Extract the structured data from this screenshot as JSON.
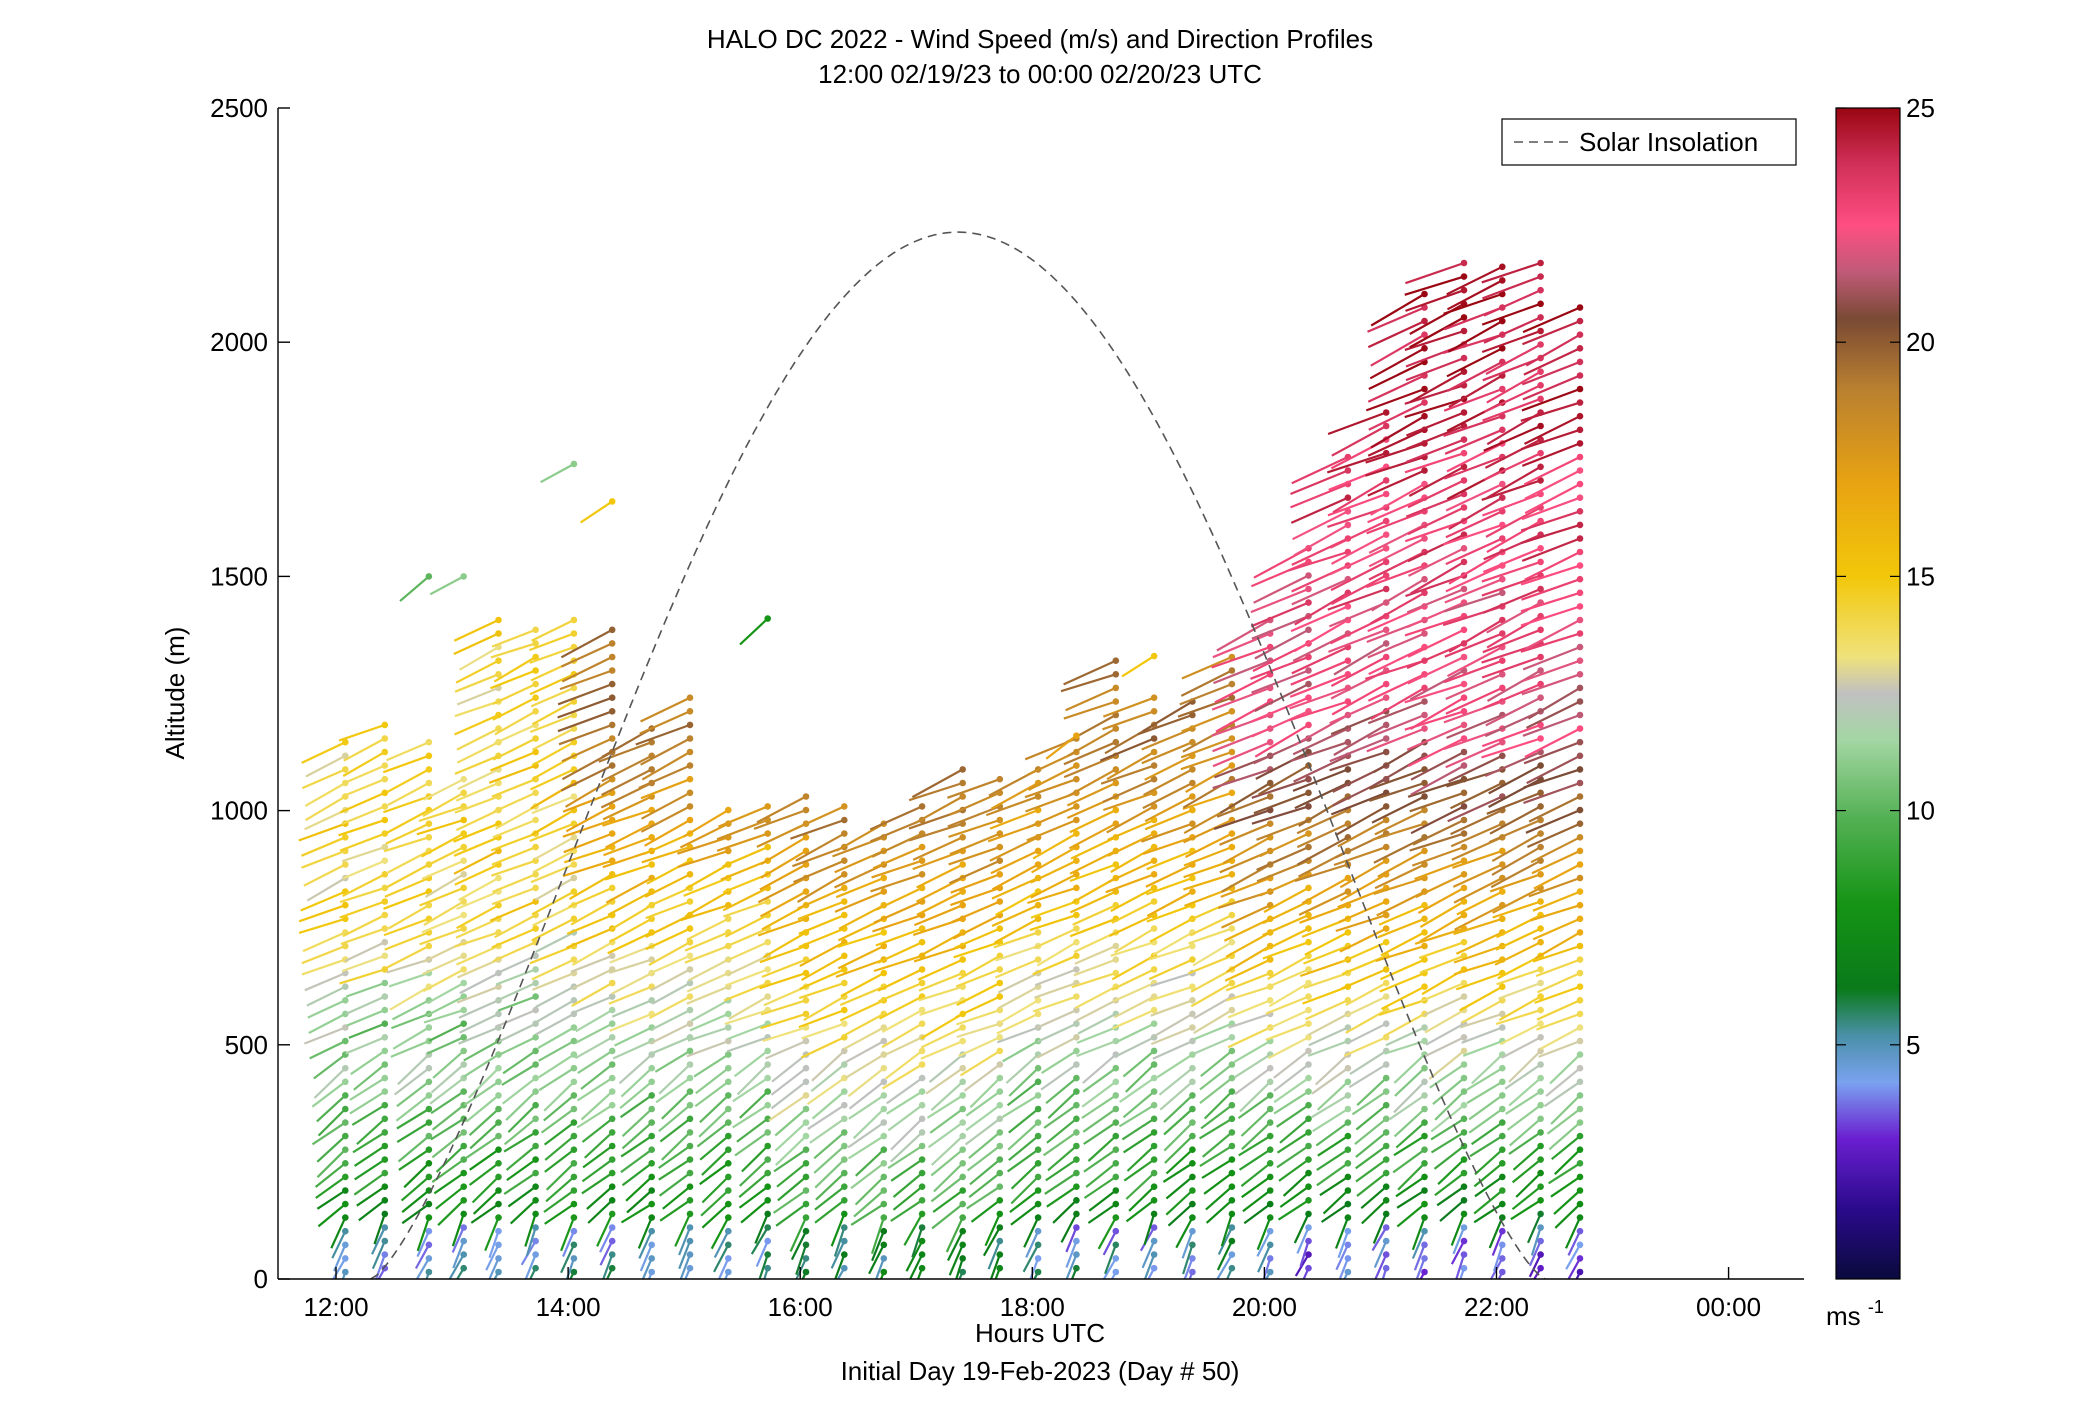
{
  "chart_data": {
    "type": "scatter",
    "title": "HALO DC 2022 - Wind Speed (m/s) and Direction Profiles",
    "subtitle": "12:00 02/19/23 to 00:00 02/20/23  UTC",
    "xlabel": "Hours UTC",
    "xlabel2": "Initial Day 19-Feb-2023 (Day # 50)",
    "ylabel": "Altitude (m)",
    "xlim": [
      11.5,
      24.65
    ],
    "ylim": [
      0,
      2500
    ],
    "x_ticks": [
      12,
      14,
      16,
      18,
      20,
      22,
      24
    ],
    "x_tick_labels": [
      "12:00",
      "14:00",
      "16:00",
      "18:00",
      "20:00",
      "22:00",
      "00:00"
    ],
    "y_ticks": [
      0,
      500,
      1000,
      1500,
      2000,
      2500
    ],
    "y_tick_labels": [
      "0",
      "500",
      "1000",
      "1500",
      "2000",
      "2500"
    ],
    "grid": false,
    "legend": {
      "position": "top-right",
      "entries": [
        "Solar Insolation"
      ]
    },
    "colorbar": {
      "range": [
        0,
        25
      ],
      "ticks": [
        5,
        10,
        15,
        20,
        25
      ],
      "tick_labels": [
        "5",
        "10",
        "15",
        "20",
        "25"
      ],
      "unit_label": "ms",
      "unit_sup": "-1",
      "stops": [
        [
          0,
          "#0a0a3c"
        ],
        [
          1.5,
          "#2a0a8c"
        ],
        [
          3,
          "#6a1fd0"
        ],
        [
          4.2,
          "#7aa2f0"
        ],
        [
          5.2,
          "#4a90a8"
        ],
        [
          6.2,
          "#0a7a1a"
        ],
        [
          8,
          "#159415"
        ],
        [
          9.8,
          "#52b052"
        ],
        [
          11.5,
          "#a3d6a3"
        ],
        [
          12.5,
          "#c0c0c0"
        ],
        [
          13.3,
          "#f0e27a"
        ],
        [
          15,
          "#f2c70a"
        ],
        [
          17,
          "#e8a312"
        ],
        [
          19,
          "#b98030"
        ],
        [
          20.5,
          "#7a4a34"
        ],
        [
          21.5,
          "#c05a78"
        ],
        [
          22.5,
          "#ff4e82"
        ],
        [
          23.8,
          "#d03058"
        ],
        [
          25,
          "#9a0612"
        ]
      ]
    },
    "solar_insolation": {
      "name": "Solar Insolation",
      "start_hour": 12.3,
      "end_hour": 22.42,
      "peak_hour": 17.36,
      "peak_altitude": 2235
    },
    "profile_hours": [
      12.08,
      12.42,
      12.8,
      13.1,
      13.4,
      13.72,
      14.05,
      14.38,
      14.72,
      15.05,
      15.38,
      15.72,
      16.05,
      16.38,
      16.72,
      17.05,
      17.4,
      17.72,
      18.05,
      18.38,
      18.72,
      19.05,
      19.38,
      19.72,
      20.05,
      20.38,
      20.72,
      21.05,
      21.38,
      21.72,
      22.05,
      22.38,
      22.72
    ],
    "profile_top_altitudes": [
      1160,
      1210,
      1160,
      1090,
      1410,
      1410,
      1410,
      1410,
      1200,
      1260,
      1020,
      1020,
      1050,
      1020,
      1000,
      1030,
      1090,
      1090,
      1090,
      1160,
      1330,
      1260,
      1260,
      1330,
      1410,
      1570,
      1760,
      1850,
      2130,
      2170,
      2170,
      2170,
      2080
    ],
    "profile_spacing_m": 29,
    "notes_scattered": [
      {
        "x": 12.8,
        "y": 1500,
        "speed": 10
      },
      {
        "x": 13.1,
        "y": 1500,
        "speed": 11
      },
      {
        "x": 14.05,
        "y": 1740,
        "speed": 11
      },
      {
        "x": 14.38,
        "y": 1660,
        "speed": 15
      },
      {
        "x": 15.72,
        "y": 1410,
        "speed": 8
      },
      {
        "x": 19.05,
        "y": 1330,
        "speed": 15
      },
      {
        "x": 18.38,
        "y": 1160,
        "speed": 17
      }
    ]
  }
}
